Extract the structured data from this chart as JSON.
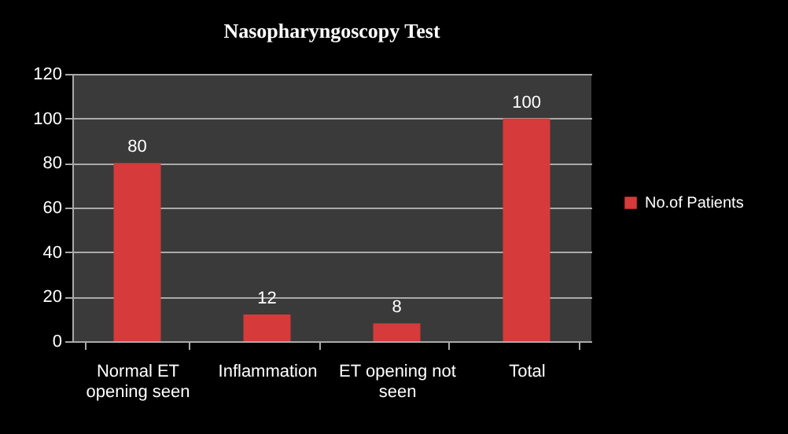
{
  "chart_data": {
    "type": "bar",
    "title": "Nasopharyngoscopy Test",
    "categories": [
      "Normal ET opening seen",
      "Inflammation",
      "ET opening not seen",
      "Total"
    ],
    "series": [
      {
        "name": "No.of Patients",
        "color": "#d63a3a",
        "values": [
          80,
          12,
          8,
          100
        ]
      }
    ],
    "ylim": [
      0,
      120
    ],
    "yticks": [
      0,
      20,
      40,
      60,
      80,
      100,
      120
    ],
    "grid": "y",
    "legend": "right",
    "data_labels": true
  }
}
